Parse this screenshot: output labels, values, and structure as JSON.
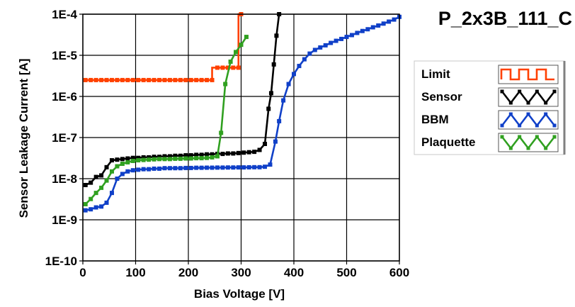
{
  "chart_data": {
    "type": "line",
    "title": "P_2x3B_111_C",
    "xlabel": "Bias Voltage [V]",
    "ylabel": "Sensor Leakage Current [A]",
    "xlim": [
      0,
      600
    ],
    "ylim": [
      1e-10,
      0.0001
    ],
    "y_scale": "log",
    "grid": true,
    "legend_position": "right",
    "x_ticks": [
      {
        "value": 0,
        "label": "0"
      },
      {
        "value": 100,
        "label": "100"
      },
      {
        "value": 200,
        "label": "200"
      },
      {
        "value": 300,
        "label": "300"
      },
      {
        "value": 400,
        "label": "400"
      },
      {
        "value": 500,
        "label": "500"
      },
      {
        "value": 600,
        "label": "600"
      }
    ],
    "y_ticks": [
      {
        "value": 1e-10,
        "label": "1E-10"
      },
      {
        "value": 1e-09,
        "label": "1E-9"
      },
      {
        "value": 1e-08,
        "label": "1E-8"
      },
      {
        "value": 1e-07,
        "label": "1E-7"
      },
      {
        "value": 1e-06,
        "label": "1E-6"
      },
      {
        "value": 1e-05,
        "label": "1E-5"
      },
      {
        "value": 0.0001,
        "label": "1E-4"
      }
    ],
    "series": [
      {
        "name": "Limit",
        "color": "#ff4000",
        "step": true,
        "x": [
          5,
          15,
          25,
          35,
          45,
          55,
          65,
          75,
          85,
          95,
          105,
          115,
          125,
          135,
          145,
          155,
          165,
          175,
          185,
          195,
          205,
          215,
          225,
          235,
          245,
          255,
          265,
          275,
          285,
          295,
          300
        ],
        "y": [
          2.5e-06,
          2.5e-06,
          2.5e-06,
          2.5e-06,
          2.5e-06,
          2.5e-06,
          2.5e-06,
          2.5e-06,
          2.5e-06,
          2.5e-06,
          2.5e-06,
          2.5e-06,
          2.5e-06,
          2.5e-06,
          2.5e-06,
          2.5e-06,
          2.5e-06,
          2.5e-06,
          2.5e-06,
          2.5e-06,
          2.5e-06,
          2.5e-06,
          2.5e-06,
          2.5e-06,
          2.5e-06,
          5e-06,
          5e-06,
          5e-06,
          5e-06,
          5e-06,
          0.0001
        ]
      },
      {
        "name": "Sensor",
        "color": "#000000",
        "step": false,
        "x": [
          5,
          15,
          25,
          35,
          45,
          55,
          65,
          75,
          85,
          95,
          105,
          115,
          125,
          135,
          145,
          155,
          165,
          175,
          185,
          195,
          205,
          215,
          225,
          235,
          245,
          255,
          265,
          275,
          285,
          295,
          305,
          315,
          325,
          335,
          345,
          352,
          357,
          362,
          367,
          372
        ],
        "y": [
          7e-09,
          8e-09,
          1.1e-08,
          1.2e-08,
          1.9e-08,
          2.8e-08,
          2.9e-08,
          3e-08,
          3.1e-08,
          3.2e-08,
          3.2e-08,
          3.3e-08,
          3.3e-08,
          3.4e-08,
          3.4e-08,
          3.5e-08,
          3.5e-08,
          3.6e-08,
          3.6e-08,
          3.7e-08,
          3.7e-08,
          3.8e-08,
          3.8e-08,
          3.9e-08,
          3.9e-08,
          4e-08,
          4e-08,
          4.1e-08,
          4.1e-08,
          4.2e-08,
          4.3e-08,
          4.4e-08,
          4.5e-08,
          5e-08,
          7e-08,
          5e-07,
          1.2e-06,
          6e-06,
          3e-05,
          0.0001
        ]
      },
      {
        "name": "BBM",
        "color": "#1040c8",
        "step": false,
        "x": [
          5,
          15,
          25,
          35,
          45,
          55,
          65,
          75,
          85,
          95,
          105,
          115,
          125,
          135,
          145,
          155,
          165,
          175,
          185,
          195,
          205,
          215,
          225,
          235,
          245,
          255,
          265,
          275,
          285,
          295,
          305,
          315,
          325,
          335,
          345,
          355,
          365,
          372,
          380,
          390,
          400,
          410,
          420,
          430,
          440,
          450,
          460,
          470,
          480,
          490,
          500,
          510,
          520,
          530,
          540,
          550,
          560,
          570,
          580,
          590,
          600
        ],
        "y": [
          1.7e-09,
          1.8e-09,
          2e-09,
          2.1e-09,
          2.6e-09,
          4.5e-09,
          1e-08,
          1.3e-08,
          1.5e-08,
          1.6e-08,
          1.65e-08,
          1.7e-08,
          1.7e-08,
          1.75e-08,
          1.75e-08,
          1.8e-08,
          1.8e-08,
          1.8e-08,
          1.8e-08,
          1.82e-08,
          1.82e-08,
          1.84e-08,
          1.84e-08,
          1.85e-08,
          1.85e-08,
          1.86e-08,
          1.86e-08,
          1.87e-08,
          1.87e-08,
          1.88e-08,
          1.88e-08,
          1.89e-08,
          1.9e-08,
          1.9e-08,
          1.95e-08,
          2.2e-08,
          8e-08,
          2.5e-07,
          8e-07,
          2e-06,
          3.5e-06,
          5.5e-06,
          8e-06,
          1.1e-05,
          1.35e-05,
          1.55e-05,
          1.75e-05,
          2e-05,
          2.25e-05,
          2.5e-05,
          2.8e-05,
          3.1e-05,
          3.5e-05,
          3.9e-05,
          4.3e-05,
          4.8e-05,
          5.3e-05,
          5.9e-05,
          6.6e-05,
          7.4e-05,
          8.6e-05
        ]
      },
      {
        "name": "Plaquette",
        "color": "#30a020",
        "step": false,
        "x": [
          5,
          15,
          25,
          35,
          45,
          55,
          65,
          75,
          85,
          95,
          105,
          115,
          125,
          135,
          145,
          155,
          165,
          175,
          185,
          195,
          205,
          215,
          225,
          235,
          245,
          255,
          262,
          270,
          280,
          290,
          300,
          310
        ],
        "y": [
          2.4e-09,
          3.2e-09,
          4.5e-09,
          6e-09,
          9e-09,
          1.5e-08,
          2e-08,
          2.3e-08,
          2.5e-08,
          2.7e-08,
          2.8e-08,
          2.85e-08,
          2.9e-08,
          2.95e-08,
          3e-08,
          3e-08,
          3e-08,
          3.05e-08,
          3.05e-08,
          3.1e-08,
          3.1e-08,
          3.15e-08,
          3.15e-08,
          3.2e-08,
          3.3e-08,
          3.5e-08,
          1.3e-07,
          2e-06,
          7e-06,
          1.2e-05,
          1.8e-05,
          2.8e-05
        ]
      }
    ]
  }
}
